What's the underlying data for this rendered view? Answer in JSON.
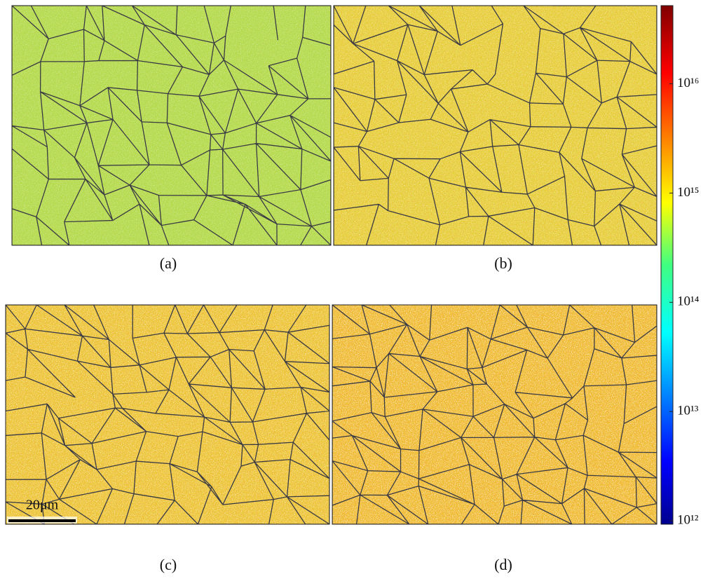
{
  "panels": [
    {
      "label": "(a)"
    },
    {
      "label": "(b)"
    },
    {
      "label": "(c)"
    },
    {
      "label": "(d)"
    }
  ],
  "scale_bar": {
    "label": "20μm"
  },
  "colorbar": {
    "scale": "log",
    "lim": [
      930000000000,
      52000000000000000
    ],
    "ticks": [
      {
        "value": 1000000000000,
        "label": "10¹²"
      },
      {
        "value": 10000000000000,
        "label": "10¹³"
      },
      {
        "value": 100000000000000,
        "label": "10¹⁴"
      },
      {
        "value": 1000000000000000,
        "label": "10¹⁵"
      },
      {
        "value": 10000000000000000,
        "label": "10¹⁶"
      }
    ]
  }
}
